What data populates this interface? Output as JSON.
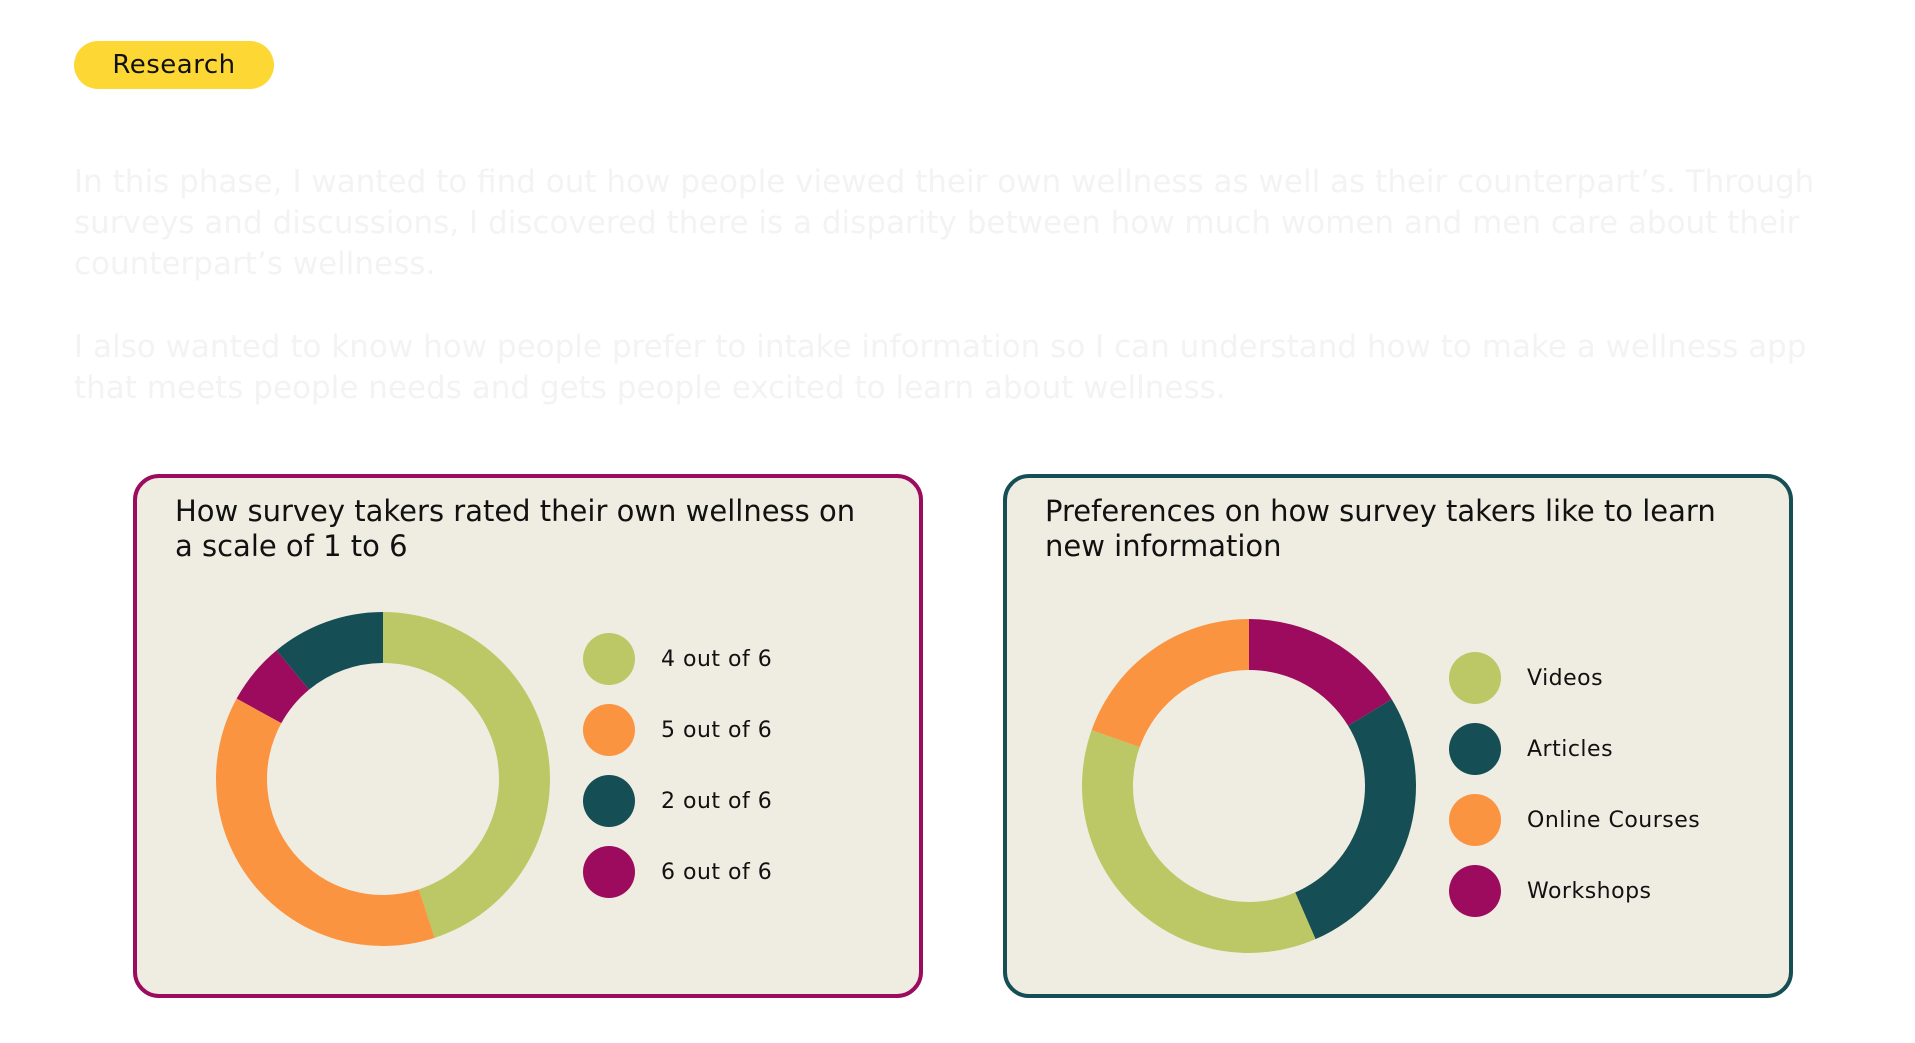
{
  "header": {
    "tag": "Research"
  },
  "intro": {
    "p1": "In this phase, I wanted to find out how people viewed their own wellness as well as their counterpart’s. Through surveys and discussions, I discovered there is a disparity between how much women and men care about their counterpart’s wellness.",
    "p2": "I also wanted to know how people prefer to intake information so I can understand how to make a wellness app that meets people needs and gets people excited to learn about wellness."
  },
  "colors": {
    "green": "#bbc865",
    "orange": "#fb9441",
    "teal": "#164e55",
    "magenta": "#9c0b5e",
    "card_bg": "#efede1"
  },
  "chart_data": [
    {
      "type": "pie",
      "title": "How survey takers rated their own wellness on a scale of 1 to 6",
      "legend_position": "right",
      "categories": [
        "4 out of 6",
        "5 out of 6",
        "2 out of 6",
        "6 out of 6"
      ],
      "values": [
        45,
        38,
        11,
        6
      ],
      "colors": [
        "#bbc865",
        "#fb9441",
        "#164e55",
        "#9c0b5e"
      ],
      "slice_order": [
        0,
        1,
        3,
        2
      ]
    },
    {
      "type": "pie",
      "title": "Preferences on how survey takers like to learn new information",
      "legend_position": "right",
      "categories": [
        "Videos",
        "Articles",
        "Online Courses",
        "Workshops"
      ],
      "values": [
        34,
        25,
        18,
        15
      ],
      "colors": [
        "#bbc865",
        "#164e55",
        "#fb9441",
        "#9c0b5e"
      ],
      "slice_order": [
        3,
        1,
        0,
        2
      ]
    }
  ]
}
